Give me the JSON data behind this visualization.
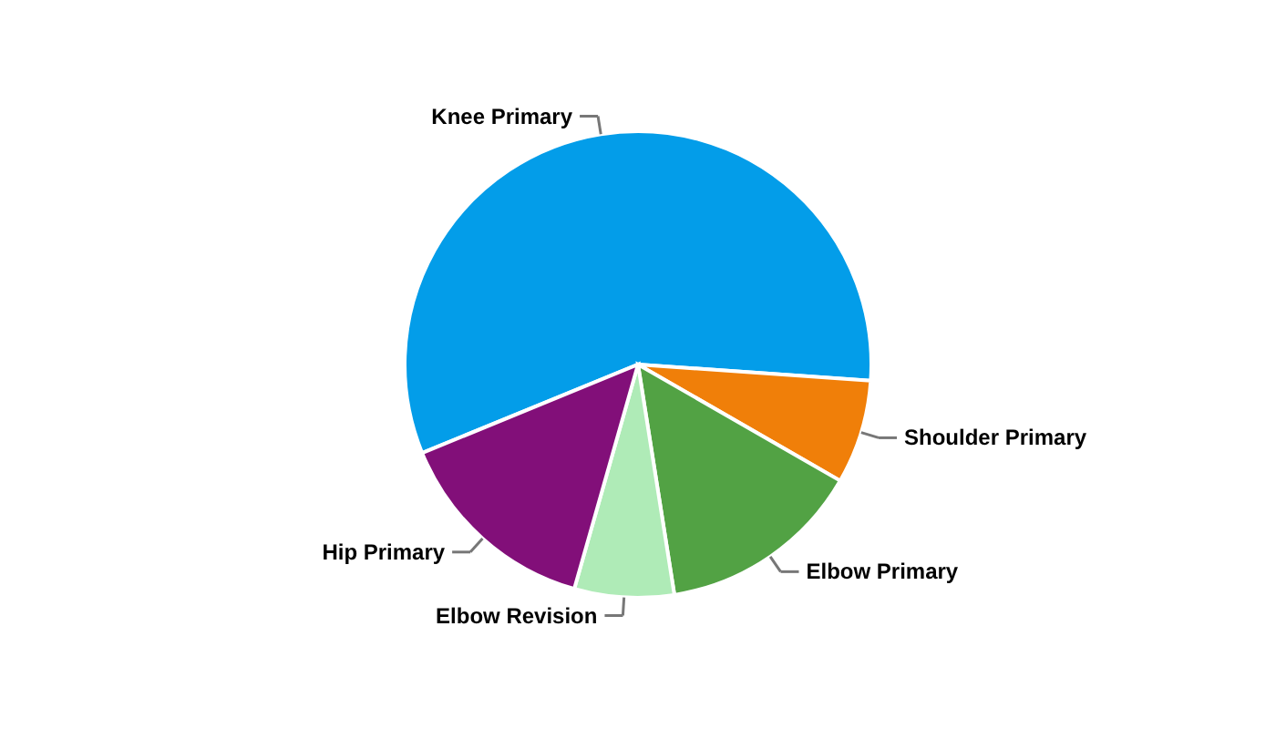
{
  "chart_data": {
    "type": "pie",
    "categories": [
      "Knee Primary",
      "Shoulder Primary",
      "Elbow Primary",
      "Elbow Revision",
      "Hip Primary"
    ],
    "values": [
      57.3,
      7.2,
      14.2,
      6.9,
      14.4
    ],
    "colors": [
      "#039de9",
      "#f07f09",
      "#52a244",
      "#afebb7",
      "#820f79"
    ]
  }
}
